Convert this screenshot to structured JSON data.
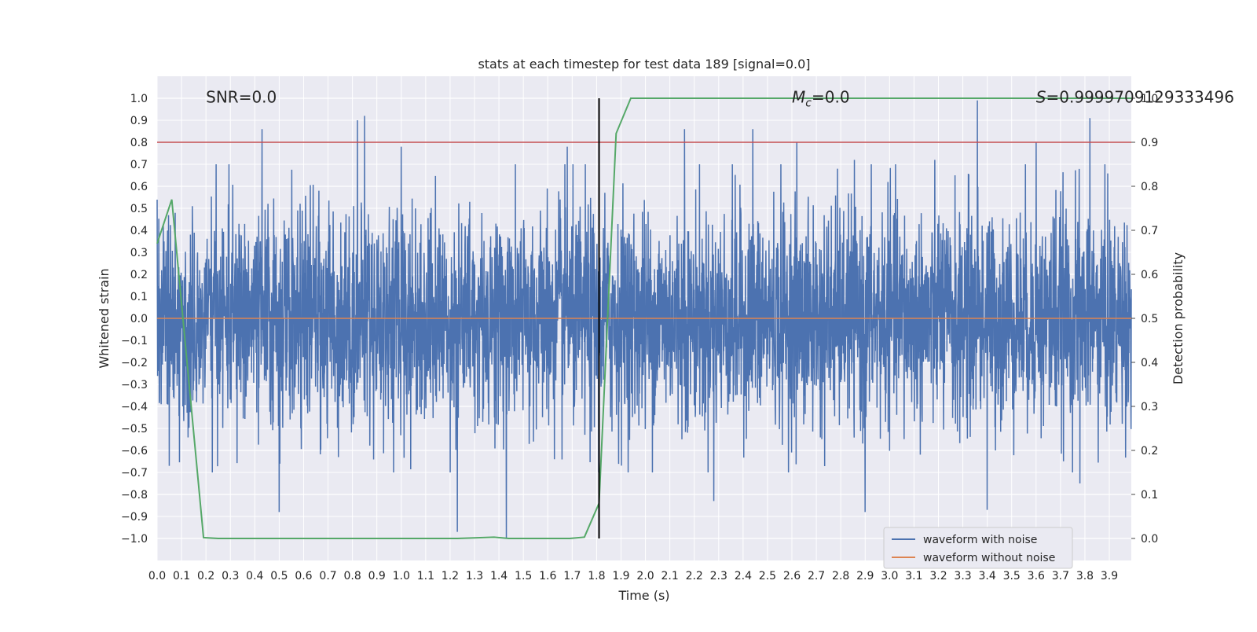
{
  "chart_data": {
    "type": "line",
    "title": "stats at each timestep for test data 189 [signal=0.0]",
    "xlabel": "Time (s)",
    "ylabel": "Whitened strain",
    "y2label": "Detection probability",
    "xlim": [
      0.0,
      3.99
    ],
    "ylim": [
      -1.1,
      1.1
    ],
    "y2lim": [
      -0.05,
      1.05
    ],
    "x_ticks": [
      0.0,
      0.1,
      0.2,
      0.3,
      0.4,
      0.5,
      0.6,
      0.7,
      0.8,
      0.9,
      1.0,
      1.1,
      1.2,
      1.3,
      1.4,
      1.5,
      1.6,
      1.7,
      1.8,
      1.9,
      2.0,
      2.1,
      2.2,
      2.3,
      2.4,
      2.5,
      2.6,
      2.7,
      2.8,
      2.9,
      3.0,
      3.1,
      3.2,
      3.3,
      3.4,
      3.5,
      3.6,
      3.7,
      3.8,
      3.9
    ],
    "x_tick_labels": [
      "0.0",
      "0.1",
      "0.2",
      "0.3",
      "0.4",
      "0.5",
      "0.6",
      "0.7",
      "0.8",
      "0.9",
      "1.0",
      "1.1",
      "1.2",
      "1.3",
      "1.4",
      "1.5",
      "1.6",
      "1.7",
      "1.8",
      "1.9",
      "2.0",
      "2.1",
      "2.2",
      "2.3",
      "2.4",
      "2.5",
      "2.6",
      "2.7",
      "2.8",
      "2.9",
      "3.0",
      "3.1",
      "3.2",
      "3.3",
      "3.4",
      "3.5",
      "3.6",
      "3.7",
      "3.8",
      "3.9"
    ],
    "y_ticks": [
      1.0,
      0.9,
      0.8,
      0.7,
      0.6,
      0.5,
      0.4,
      0.3,
      0.2,
      0.1,
      0.0,
      -0.1,
      -0.2,
      -0.3,
      -0.4,
      -0.5,
      -0.6,
      -0.7,
      -0.8,
      -0.9,
      -1.0
    ],
    "y_tick_labels": [
      "1.0",
      "0.9",
      "0.8",
      "0.7",
      "0.6",
      "0.5",
      "0.4",
      "0.3",
      "0.2",
      "0.1",
      "0.0",
      "−0.1",
      "−0.2",
      "−0.3",
      "−0.4",
      "−0.5",
      "−0.6",
      "−0.7",
      "−0.8",
      "−0.9",
      "−1.0"
    ],
    "y2_ticks": [
      1.0,
      0.9,
      0.8,
      0.7,
      0.6,
      0.5,
      0.4,
      0.3,
      0.2,
      0.1,
      0.0
    ],
    "y2_tick_labels": [
      "1.0",
      "0.9",
      "0.8",
      "0.7",
      "0.6",
      "0.5",
      "0.4",
      "0.3",
      "0.2",
      "0.1",
      "0.0"
    ],
    "series": [
      {
        "name": "waveform with noise",
        "color": "#4c72b0",
        "axis": "left",
        "description": "dense noise, roughly symmetric, mostly within ±0.45 with spikes",
        "noise_amplitude": 0.45,
        "positive_spikes": [
          [
            0.43,
            0.86
          ],
          [
            0.82,
            0.9
          ],
          [
            0.85,
            0.92
          ],
          [
            1.0,
            0.78
          ],
          [
            1.68,
            0.78
          ],
          [
            2.16,
            0.86
          ],
          [
            2.44,
            0.86
          ],
          [
            2.62,
            0.8
          ],
          [
            3.36,
            0.99
          ],
          [
            3.6,
            0.8
          ],
          [
            3.82,
            0.91
          ]
        ],
        "negative_spikes": [
          [
            0.05,
            -0.67
          ],
          [
            0.5,
            -0.88
          ],
          [
            1.23,
            -0.97
          ],
          [
            1.43,
            -1.0
          ],
          [
            2.28,
            -0.83
          ],
          [
            2.9,
            -0.88
          ],
          [
            3.4,
            -0.87
          ],
          [
            3.78,
            -0.75
          ]
        ]
      },
      {
        "name": "waveform without noise",
        "color": "#dd8452",
        "axis": "left",
        "x": [
          0.0,
          3.99
        ],
        "y": [
          0.0,
          0.0
        ]
      },
      {
        "name": "detection probability",
        "color": "#55a868",
        "axis": "right",
        "x": [
          0.0,
          0.06,
          0.19,
          0.25,
          1.23,
          1.38,
          1.44,
          1.57,
          1.69,
          1.75,
          1.81,
          1.88,
          1.94,
          3.99
        ],
        "y": [
          0.67,
          0.77,
          0.002,
          0.0,
          0.0,
          0.003,
          0.0,
          0.0,
          0.0,
          0.003,
          0.08,
          0.92,
          1.0,
          1.0
        ]
      }
    ],
    "threshold_line": {
      "axis": "right",
      "value": 0.9,
      "color": "#c44e52"
    },
    "event_line": {
      "x": 1.81,
      "color": "#000000"
    },
    "annotations": {
      "snr": "SNR=0.0",
      "mc_symbol": "M",
      "mc_sub": "c",
      "mc_value": "=0.0",
      "s_symbol": "S",
      "s_value": "=0.9999709129333496"
    },
    "legend": {
      "location": "lower-right",
      "entries": [
        {
          "label": "waveform with noise",
          "color": "#4c72b0"
        },
        {
          "label": "waveform without noise",
          "color": "#dd8452"
        }
      ]
    },
    "grid": true,
    "background_color": "#eaeaf2"
  }
}
